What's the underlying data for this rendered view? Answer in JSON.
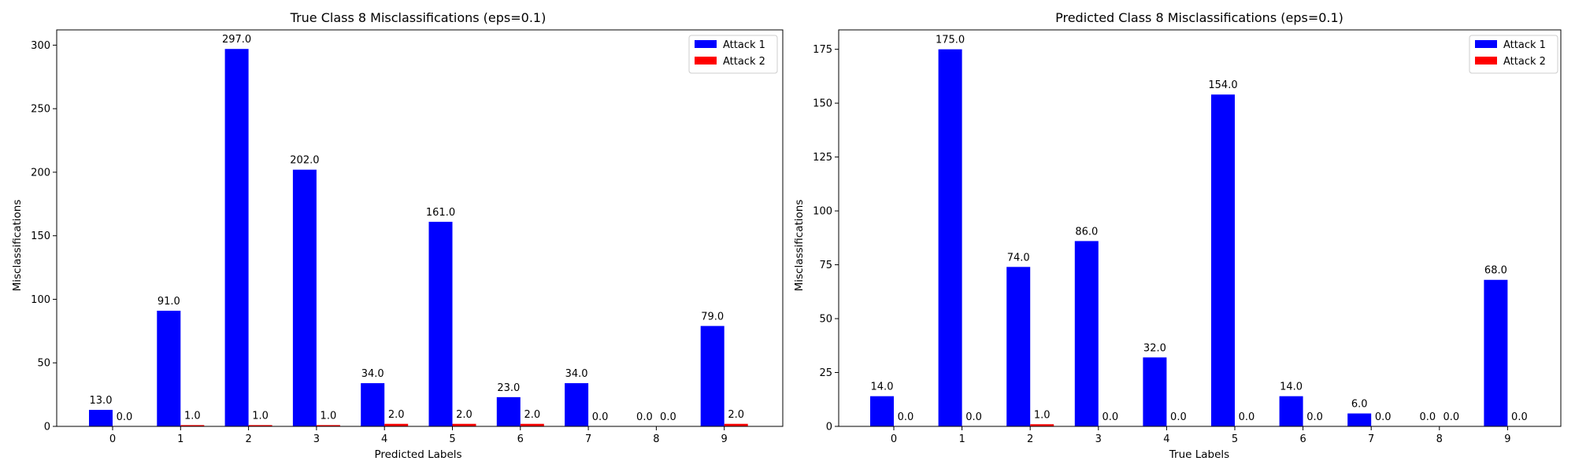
{
  "chart_data": [
    {
      "type": "bar",
      "title": "True Class 8 Misclassifications (eps=0.1)",
      "xlabel": "Predicted Labels",
      "ylabel": "Misclassifications",
      "categories": [
        "0",
        "1",
        "2",
        "3",
        "4",
        "5",
        "6",
        "7",
        "8",
        "9"
      ],
      "series": [
        {
          "name": "Attack 1",
          "color": "#0000ff",
          "values": [
            13,
            91,
            297,
            202,
            34,
            161,
            23,
            34,
            0,
            79
          ],
          "labels": [
            "13.0",
            "91.0",
            "297.0",
            "202.0",
            "34.0",
            "161.0",
            "23.0",
            "34.0",
            "0.0",
            "79.0"
          ]
        },
        {
          "name": "Attack 2",
          "color": "#ff0000",
          "values": [
            0,
            1,
            1,
            1,
            2,
            2,
            2,
            0,
            0,
            2
          ],
          "labels": [
            "0.0",
            "1.0",
            "1.0",
            "1.0",
            "2.0",
            "2.0",
            "2.0",
            "0.0",
            "0.0",
            "2.0"
          ]
        }
      ],
      "ylim": [
        0,
        312
      ],
      "yticks": [
        "0",
        "50",
        "100",
        "150",
        "200",
        "250",
        "300"
      ],
      "ytick_values": [
        0,
        50,
        100,
        150,
        200,
        250,
        300
      ],
      "legend": "top-right",
      "grid": false
    },
    {
      "type": "bar",
      "title": "Predicted Class 8 Misclassifications (eps=0.1)",
      "xlabel": "True Labels",
      "ylabel": "Misclassifications",
      "categories": [
        "0",
        "1",
        "2",
        "3",
        "4",
        "5",
        "6",
        "7",
        "8",
        "9"
      ],
      "series": [
        {
          "name": "Attack 1",
          "color": "#0000ff",
          "values": [
            14,
            175,
            74,
            86,
            32,
            154,
            14,
            6,
            0,
            68
          ],
          "labels": [
            "14.0",
            "175.0",
            "74.0",
            "86.0",
            "32.0",
            "154.0",
            "14.0",
            "6.0",
            "0.0",
            "68.0"
          ]
        },
        {
          "name": "Attack 2",
          "color": "#ff0000",
          "values": [
            0,
            0,
            1,
            0,
            0,
            0,
            0,
            0,
            0,
            0
          ],
          "labels": [
            "0.0",
            "0.0",
            "1.0",
            "0.0",
            "0.0",
            "0.0",
            "0.0",
            "0.0",
            "0.0",
            "0.0"
          ]
        }
      ],
      "ylim": [
        0,
        184
      ],
      "yticks": [
        "0",
        "25",
        "50",
        "75",
        "100",
        "125",
        "150",
        "175"
      ],
      "ytick_values": [
        0,
        25,
        50,
        75,
        100,
        125,
        150,
        175
      ],
      "legend": "top-right",
      "grid": false
    }
  ]
}
